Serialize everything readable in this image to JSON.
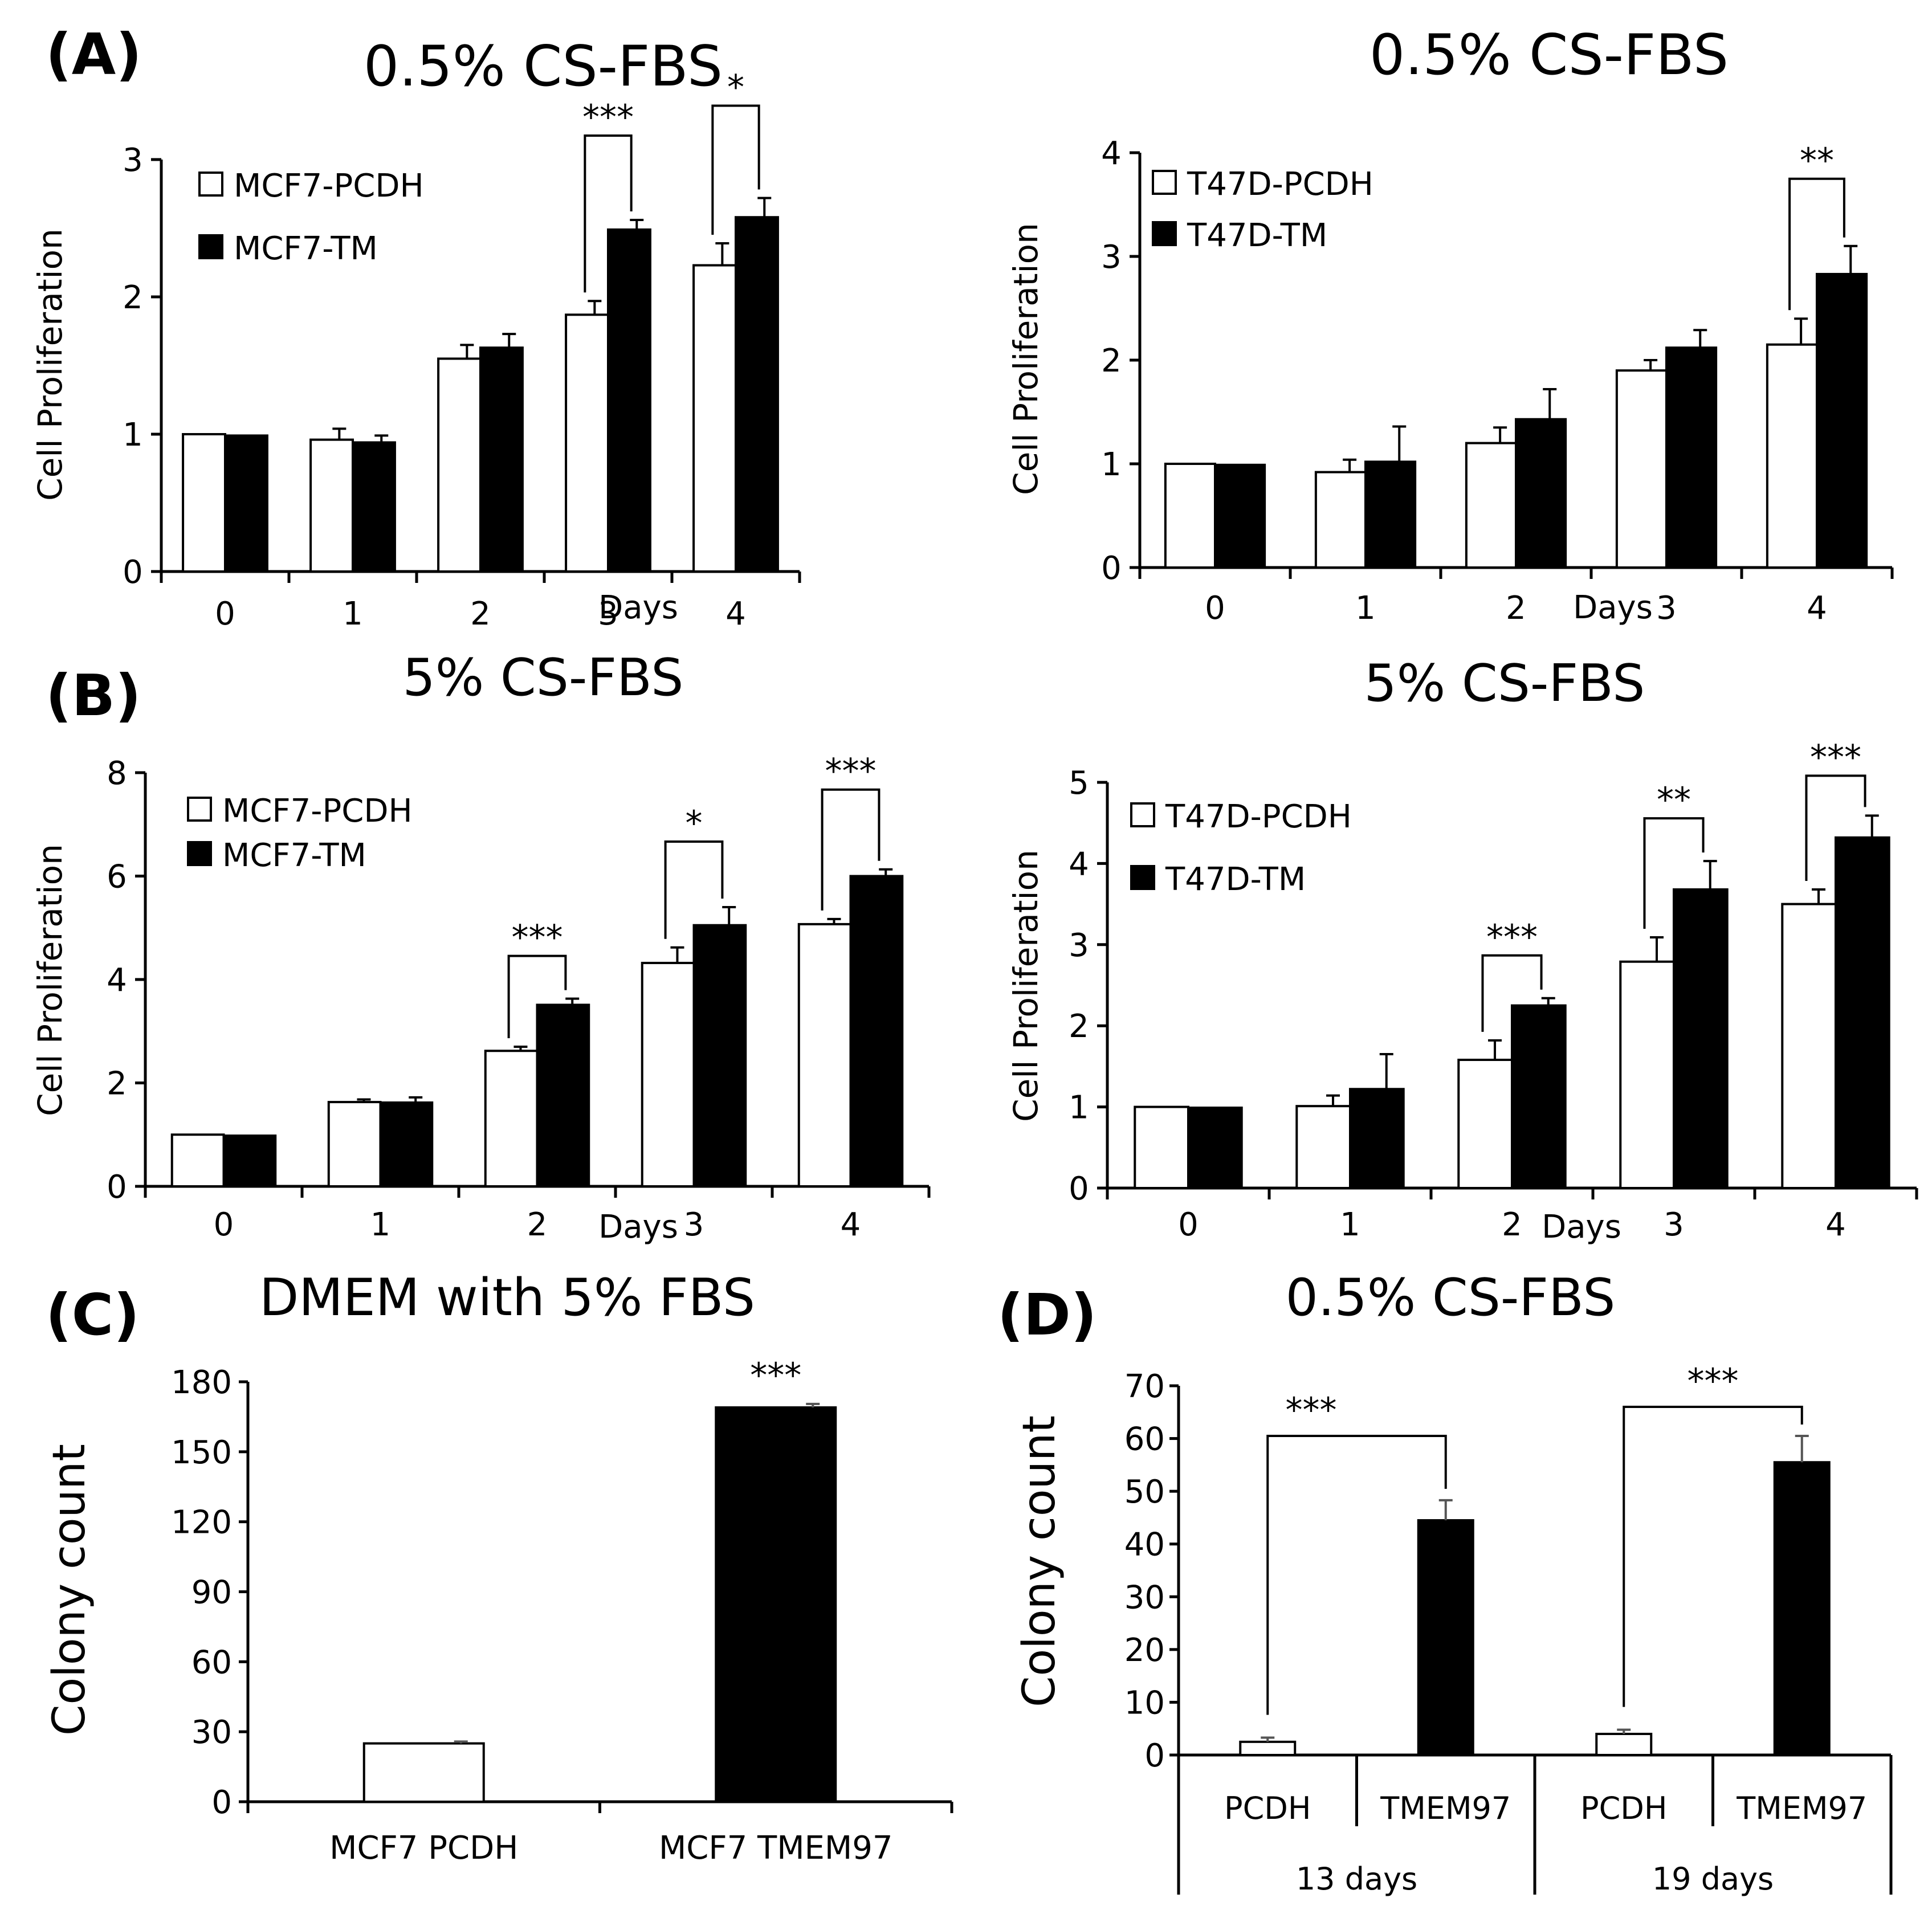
{
  "chart_data": [
    {
      "type": "bar",
      "panel": "(A)",
      "title": "0.5% CS-FBS",
      "xlabel": "Days",
      "ylabel": "Cell Proliferation",
      "ylim": [
        0,
        3
      ],
      "yticks": [
        0,
        1,
        2,
        3
      ],
      "categories": [
        "0",
        "1",
        "2",
        "3",
        "4"
      ],
      "series": [
        {
          "name": "MCF7-PCDH",
          "fill": "#ffffff",
          "values": [
            1.0,
            0.96,
            1.55,
            1.87,
            2.23
          ],
          "errors": [
            0,
            0.08,
            0.1,
            0.1,
            0.16
          ]
        },
        {
          "name": "MCF7-TM",
          "fill": "#000000",
          "values": [
            0.99,
            0.94,
            1.63,
            2.49,
            2.58
          ],
          "errors": [
            0,
            0.05,
            0.1,
            0.07,
            0.14
          ]
        }
      ],
      "legend_position": "top-left",
      "significance": [
        {
          "category": "3",
          "label": "***"
        },
        {
          "category": "4",
          "label": "*"
        }
      ]
    },
    {
      "type": "bar",
      "title": "0.5% CS-FBS",
      "xlabel": "Days",
      "ylabel": "Cell Proliferation",
      "ylim": [
        0,
        4
      ],
      "yticks": [
        0,
        1,
        2,
        3,
        4
      ],
      "categories": [
        "0",
        "1",
        "2",
        "3",
        "4"
      ],
      "series": [
        {
          "name": "T47D-PCDH",
          "fill": "#ffffff",
          "values": [
            1.0,
            0.92,
            1.2,
            1.9,
            2.15
          ],
          "errors": [
            0,
            0.12,
            0.15,
            0.1,
            0.25
          ]
        },
        {
          "name": "T47D-TM",
          "fill": "#000000",
          "values": [
            0.99,
            1.02,
            1.43,
            2.12,
            2.83
          ],
          "errors": [
            0,
            0.34,
            0.29,
            0.17,
            0.27
          ]
        }
      ],
      "legend_position": "top-left",
      "significance": [
        {
          "category": "4",
          "label": "**"
        }
      ]
    },
    {
      "type": "bar",
      "panel": "(B)",
      "title": "5% CS-FBS",
      "xlabel": "Days",
      "ylabel": "Cell Proliferation",
      "ylim": [
        0,
        8
      ],
      "yticks": [
        0,
        2,
        4,
        6,
        8
      ],
      "categories": [
        "0",
        "1",
        "2",
        "3",
        "4"
      ],
      "series": [
        {
          "name": "MCF7-PCDH",
          "fill": "#ffffff",
          "values": [
            1.0,
            1.63,
            2.62,
            4.32,
            5.07
          ],
          "errors": [
            0,
            0.05,
            0.08,
            0.3,
            0.1
          ]
        },
        {
          "name": "MCF7-TM",
          "fill": "#000000",
          "values": [
            0.98,
            1.62,
            3.51,
            5.05,
            6.0
          ],
          "errors": [
            0,
            0.1,
            0.12,
            0.35,
            0.13
          ]
        }
      ],
      "legend_position": "top-left",
      "significance": [
        {
          "category": "2",
          "label": "***"
        },
        {
          "category": "3",
          "label": "*"
        },
        {
          "category": "4",
          "label": "***"
        }
      ]
    },
    {
      "type": "bar",
      "title": "5% CS-FBS",
      "xlabel": "Days",
      "ylabel": "Cell Proliferation",
      "ylim": [
        0,
        5
      ],
      "yticks": [
        0,
        1,
        2,
        3,
        4,
        5
      ],
      "categories": [
        "0",
        "1",
        "2",
        "3",
        "4"
      ],
      "series": [
        {
          "name": "T47D-PCDH",
          "fill": "#ffffff",
          "values": [
            1.0,
            1.01,
            1.58,
            2.79,
            3.5
          ],
          "errors": [
            0,
            0.13,
            0.24,
            0.3,
            0.18
          ]
        },
        {
          "name": "T47D-TM",
          "fill": "#000000",
          "values": [
            0.99,
            1.22,
            2.25,
            3.68,
            4.32
          ],
          "errors": [
            0,
            0.43,
            0.09,
            0.35,
            0.27
          ]
        }
      ],
      "legend_position": "top-left",
      "significance": [
        {
          "category": "2",
          "label": "***"
        },
        {
          "category": "3",
          "label": "**"
        },
        {
          "category": "4",
          "label": "***"
        }
      ]
    },
    {
      "type": "bar",
      "panel": "(C)",
      "title": "DMEM with 5% FBS",
      "xlabel": "",
      "ylabel": "Colony count",
      "ylim": [
        0,
        180
      ],
      "yticks": [
        0,
        30,
        60,
        90,
        120,
        150,
        180
      ],
      "categories": [
        "MCF7 PCDH",
        "MCF7 TMEM97"
      ],
      "values": [
        25,
        169
      ],
      "errors": [
        0.8,
        1.5
      ],
      "fills": [
        "#ffffff",
        "#000000"
      ],
      "significance": [
        {
          "category": "MCF7 TMEM97",
          "label": "***"
        }
      ]
    },
    {
      "type": "bar",
      "panel": "(D)",
      "title": "0.5% CS-FBS",
      "xlabel": "",
      "ylabel": "Colony count",
      "ylim": [
        0,
        70
      ],
      "yticks": [
        0,
        10,
        20,
        30,
        40,
        50,
        60,
        70
      ],
      "categories": [
        "PCDH",
        "TMEM97",
        "PCDH",
        "TMEM97"
      ],
      "groups": [
        {
          "label": "13 days",
          "categories": [
            "PCDH",
            "TMEM97"
          ]
        },
        {
          "label": "19 days",
          "categories": [
            "PCDH",
            "TMEM97"
          ]
        }
      ],
      "values": [
        2.5,
        44.5,
        4,
        55.5
      ],
      "errors": [
        0.8,
        3.8,
        0.8,
        5
      ],
      "fills": [
        "#ffffff",
        "#000000",
        "#ffffff",
        "#000000"
      ],
      "significance": [
        {
          "group": "13 days",
          "label": "***"
        },
        {
          "group": "19 days",
          "label": "***"
        }
      ]
    }
  ]
}
